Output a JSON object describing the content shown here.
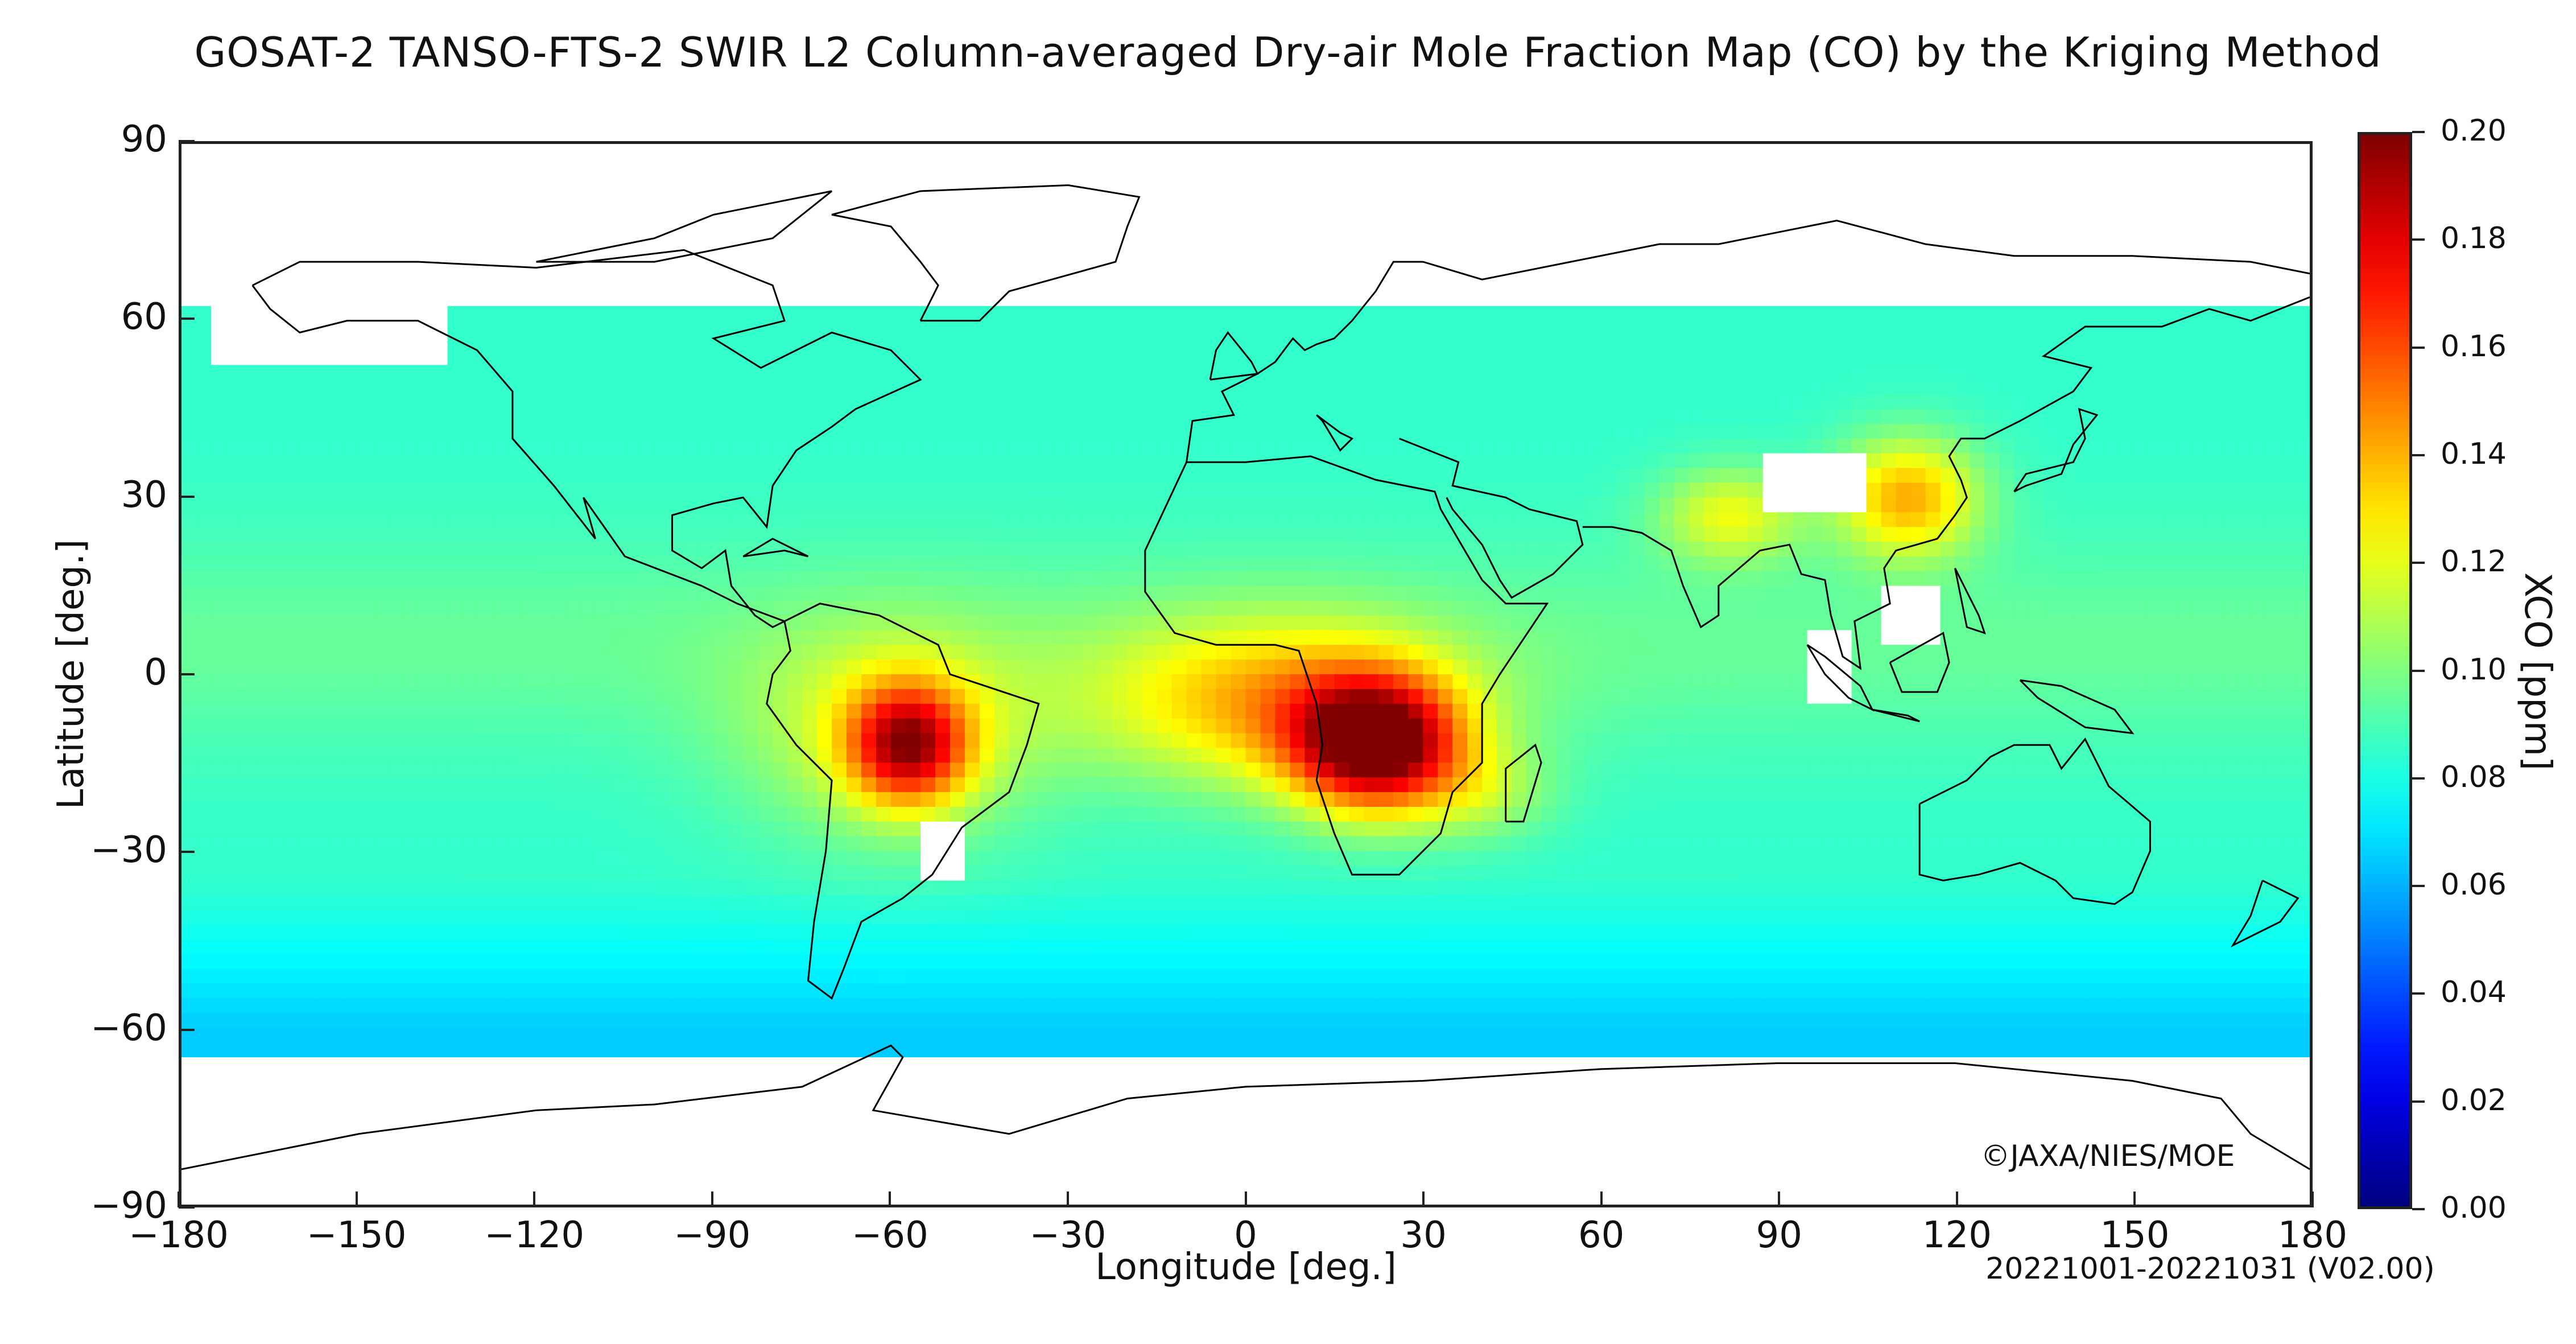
{
  "title": "GOSAT-2 TANSO-FTS-2 SWIR L2 Column-averaged Dry-air Mole Fraction Map (CO) by the Kriging Method",
  "copyright": "©JAXA/NIES/MOE",
  "date_note": "20221001-20221031 (V02.00)",
  "colors": {
    "ocean_base": "#3ee0c8",
    "high": "#d40000",
    "mid": "#ffd21a",
    "no_data": "#ffffff",
    "coastline": "#000000"
  },
  "chart_data": {
    "type": "heatmap",
    "title": "GOSAT-2 TANSO-FTS-2 SWIR L2 Column-averaged Dry-air Mole Fraction Map (CO) by the Kriging Method",
    "xlabel": "Longitude [deg.]",
    "ylabel": "Latitude [deg.]",
    "xlim": [
      -180,
      180
    ],
    "ylim": [
      -90,
      90
    ],
    "x_ticks": [
      "−180",
      "−150",
      "−120",
      "−90",
      "−60",
      "−30",
      "0",
      "30",
      "60",
      "90",
      "120",
      "150",
      "180"
    ],
    "y_ticks": [
      "90",
      "60",
      "30",
      "0",
      "−30",
      "−60",
      "−90"
    ],
    "colorbar": {
      "label": "XCO [ppm]",
      "range": [
        0.0,
        0.2
      ],
      "ticks": [
        "0.20",
        "0.18",
        "0.16",
        "0.14",
        "0.12",
        "0.10",
        "0.08",
        "0.06",
        "0.04",
        "0.02",
        "0.00"
      ],
      "colormap": "jet"
    },
    "background_value": 0.085,
    "hotspots": [
      {
        "region": "Central Africa",
        "lon": 22,
        "lat": -12,
        "value": 0.2
      },
      {
        "region": "South America (Amazon)",
        "lon": -57,
        "lat": -12,
        "value": 0.17
      },
      {
        "region": "East China",
        "lon": 112,
        "lat": 30,
        "value": 0.14
      },
      {
        "region": "Northern India",
        "lon": 82,
        "lat": 27,
        "value": 0.12
      }
    ],
    "southern_ocean_value": 0.065,
    "no_data_regions": [
      "Arctic (north of ~63N)",
      "Antarctica (south of ~65S)",
      "Tibetan Plateau",
      "Southeast Asia islands",
      "Southern Brazil"
    ]
  }
}
